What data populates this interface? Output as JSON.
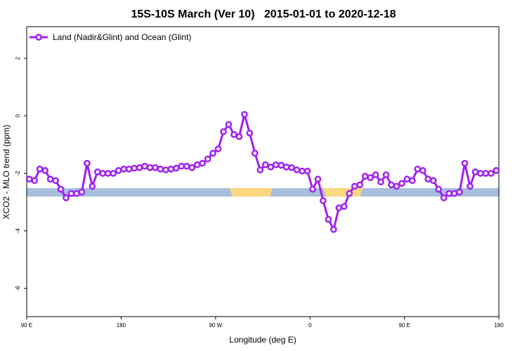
{
  "chart_data": {
    "type": "line",
    "title": "15S-10S March (Ver 10)   2015-01-01 to 2020-12-18",
    "x_label": "Longitude (deg E)",
    "y_label": "XCO2 - MLO trend (ppm)",
    "x": [
      92.5,
      97.5,
      102.5,
      107.5,
      112.5,
      117.5,
      122.5,
      127.5,
      132.5,
      137.5,
      142.5,
      147.5,
      152.5,
      157.5,
      162.5,
      167.5,
      172.5,
      177.5,
      182.5,
      187.5,
      192.5,
      197.5,
      202.5,
      207.5,
      212.5,
      217.5,
      222.5,
      227.5,
      232.5,
      237.5,
      242.5,
      247.5,
      252.5,
      257.5,
      262.5,
      267.5,
      272.5,
      277.5,
      282.5,
      287.5,
      292.5,
      297.5,
      302.5,
      307.5,
      312.5,
      317.5,
      322.5,
      327.5,
      332.5,
      337.5,
      342.5,
      347.5,
      352.5,
      357.5,
      362.5,
      367.5,
      372.5,
      377.5,
      382.5,
      387.5,
      392.5,
      397.5,
      402.5,
      407.5,
      412.5,
      417.5,
      422.5,
      427.5,
      432.5,
      437.5,
      442.5,
      447.5,
      452.5,
      457.5,
      462.5,
      467.5,
      472.5,
      477.5,
      482.5,
      487.5,
      492.5,
      497.5,
      502.5,
      507.5,
      512.5,
      517.5,
      522.5,
      527.5,
      532.5,
      537.5
    ],
    "series": [
      {
        "name": "Land (Nadir&Glint) and Ocean (Glint)",
        "color": "#a020f0",
        "values": [
          -2.2,
          -2.25,
          -1.85,
          -1.9,
          -2.2,
          -2.25,
          -2.55,
          -2.85,
          -2.7,
          -2.7,
          -2.65,
          -1.65,
          -2.45,
          -1.95,
          -2.0,
          -2.0,
          -2.0,
          -1.9,
          -1.85,
          -1.85,
          -1.82,
          -1.8,
          -1.75,
          -1.8,
          -1.8,
          -1.85,
          -1.88,
          -1.85,
          -1.82,
          -1.75,
          -1.75,
          -1.8,
          -1.7,
          -1.65,
          -1.5,
          -1.3,
          -1.15,
          -0.55,
          -0.3,
          -0.65,
          -0.72,
          0.05,
          -0.6,
          -1.3,
          -1.88,
          -1.7,
          -1.78,
          -1.7,
          -1.72,
          -1.78,
          -1.8,
          -1.88,
          -1.92,
          -1.92,
          -2.55,
          -2.2,
          -2.95,
          -3.6,
          -3.95,
          -3.2,
          -3.15,
          -2.7,
          -2.45,
          -2.4,
          -2.1,
          -2.15,
          -2.05,
          -2.3,
          -2.05,
          -2.4,
          -2.45,
          -2.35,
          -2.2,
          -2.25,
          -1.85,
          -1.9,
          -2.2,
          -2.25,
          -2.55,
          -2.85,
          -2.7,
          -2.7,
          -2.65,
          -1.65,
          -2.45,
          -1.95,
          -2.0,
          -2.0,
          -2.0,
          -1.9
        ]
      }
    ],
    "xlim": [
      90,
      540
    ],
    "xticks": [
      {
        "value": 90,
        "label": "90 E"
      },
      180,
      {
        "value": 270,
        "label": "90 W"
      },
      {
        "value": 360,
        "label": "0"
      },
      {
        "value": 450,
        "label": "90 E"
      },
      {
        "value": 540,
        "label": "180"
      }
    ],
    "ylim": [
      -6.98,
      3.1
    ],
    "yticks": [
      2,
      0,
      -2,
      -4,
      -6
    ],
    "legend": "top-left"
  }
}
